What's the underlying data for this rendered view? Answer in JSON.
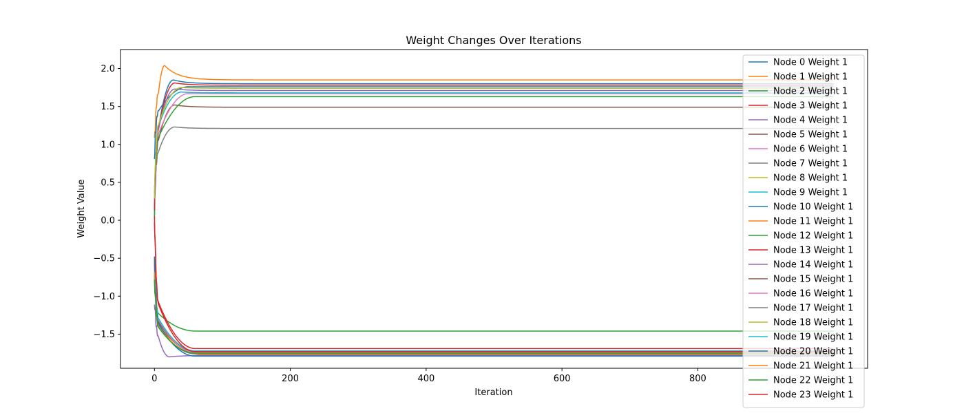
{
  "chart_data": {
    "type": "line",
    "title": "Weight Changes Over Iterations",
    "xlabel": "Iteration",
    "ylabel": "Weight Value",
    "xlim": [
      -50,
      1050
    ],
    "ylim": [
      -1.95,
      2.25
    ],
    "xticks": [
      0,
      200,
      400,
      600,
      800
    ],
    "yticks": [
      -1.5,
      -1.0,
      -0.5,
      0.0,
      0.5,
      1.0,
      1.5,
      2.0
    ],
    "ytick_labels": [
      "−1.5",
      "−1.0",
      "−0.5",
      "0.0",
      "0.5",
      "1.0",
      "1.5",
      "2.0"
    ],
    "xtick_labels": [
      "0",
      "200",
      "400",
      "600",
      "800"
    ],
    "legend_position": "upper-right",
    "grid": false,
    "iterations": [
      0,
      1000
    ],
    "series": [
      {
        "name": "Node 0 Weight 1",
        "color": "#1f77b4",
        "start": 0.02,
        "peak": 1.85,
        "peak_at": 28,
        "final": 1.8
      },
      {
        "name": "Node 1 Weight 1",
        "color": "#ff7f0e",
        "start": 1.02,
        "peak": 2.04,
        "peak_at": 15,
        "final": 1.85
      },
      {
        "name": "Node 2 Weight 1",
        "color": "#2ca02c",
        "start": -0.8,
        "peak": -1.46,
        "peak_at": 60,
        "final": -1.46
      },
      {
        "name": "Node 3 Weight 1",
        "color": "#d62728",
        "start": 0.05,
        "peak": -1.69,
        "peak_at": 60,
        "final": -1.69
      },
      {
        "name": "Node 4 Weight 1",
        "color": "#9467bd",
        "start": -1.05,
        "peak": -1.8,
        "peak_at": 22,
        "final": -1.78
      },
      {
        "name": "Node 5 Weight 1",
        "color": "#8c564b",
        "start": 0.2,
        "peak": 1.52,
        "peak_at": 30,
        "final": 1.49
      },
      {
        "name": "Node 6 Weight 1",
        "color": "#e377c2",
        "start": 0.15,
        "peak": 1.67,
        "peak_at": 50,
        "final": 1.67
      },
      {
        "name": "Node 7 Weight 1",
        "color": "#7f7f7f",
        "start": 0.3,
        "peak": 1.23,
        "peak_at": 30,
        "final": 1.21
      },
      {
        "name": "Node 8 Weight 1",
        "color": "#bcbd22",
        "start": -0.6,
        "peak": -1.75,
        "peak_at": 70,
        "final": -1.75
      },
      {
        "name": "Node 9 Weight 1",
        "color": "#17becf",
        "start": 0.4,
        "peak": 1.69,
        "peak_at": 40,
        "final": 1.68
      },
      {
        "name": "Node 10 Weight 1",
        "color": "#1f77b4",
        "start": 0.85,
        "peak": 1.76,
        "peak_at": 50,
        "final": 1.76
      },
      {
        "name": "Node 11 Weight 1",
        "color": "#ff7f0e",
        "start": -0.65,
        "peak": -1.77,
        "peak_at": 70,
        "final": -1.77
      },
      {
        "name": "Node 12 Weight 1",
        "color": "#2ca02c",
        "start": 0.1,
        "peak": 1.63,
        "peak_at": 60,
        "final": 1.63
      },
      {
        "name": "Node 13 Weight 1",
        "color": "#d62728",
        "start": 0.1,
        "peak": 1.81,
        "peak_at": 30,
        "final": 1.78
      },
      {
        "name": "Node 14 Weight 1",
        "color": "#9467bd",
        "start": 0.2,
        "peak": 1.73,
        "peak_at": 30,
        "final": 1.71
      },
      {
        "name": "Node 15 Weight 1",
        "color": "#8c564b",
        "start": -0.6,
        "peak": -1.73,
        "peak_at": 60,
        "final": -1.73
      },
      {
        "name": "Node 16 Weight 1",
        "color": "#e377c2",
        "start": -0.5,
        "peak": -1.74,
        "peak_at": 60,
        "final": -1.74
      },
      {
        "name": "Node 17 Weight 1",
        "color": "#7f7f7f",
        "start": -0.7,
        "peak": -1.76,
        "peak_at": 60,
        "final": -1.76
      },
      {
        "name": "Node 18 Weight 1",
        "color": "#bcbd22",
        "start": 0.35,
        "peak": 1.75,
        "peak_at": 40,
        "final": 1.74
      },
      {
        "name": "Node 19 Weight 1",
        "color": "#17becf",
        "start": -0.5,
        "peak": -1.72,
        "peak_at": 60,
        "final": -1.72
      },
      {
        "name": "Node 20 Weight 1",
        "color": "#1f77b4",
        "start": -0.55,
        "peak": -1.79,
        "peak_at": 60,
        "final": -1.79
      },
      {
        "name": "Node 21 Weight 1",
        "color": "#ff7f0e",
        "start": -0.75,
        "peak": -1.75,
        "peak_at": 60,
        "final": -1.75
      },
      {
        "name": "Node 22 Weight 1",
        "color": "#2ca02c",
        "start": -0.78,
        "peak": -1.75,
        "peak_at": 60,
        "final": -1.75
      },
      {
        "name": "Node 23 Weight 1",
        "color": "#d62728",
        "start": 0.04,
        "peak": -1.73,
        "peak_at": 60,
        "final": -1.73
      }
    ]
  }
}
